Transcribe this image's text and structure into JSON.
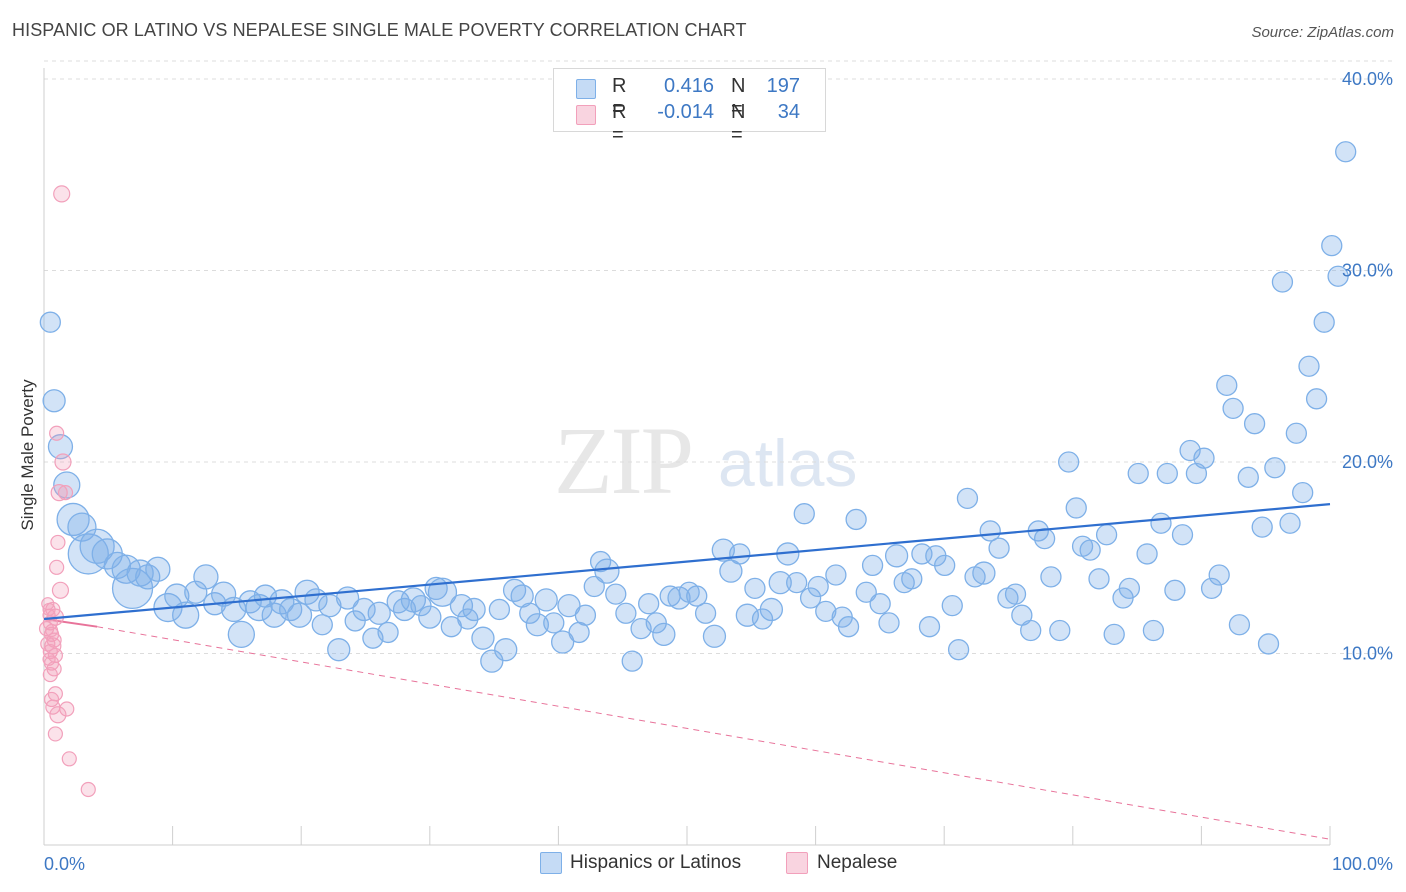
{
  "header": {
    "title": "HISPANIC OR LATINO VS NEPALESE SINGLE MALE POVERTY CORRELATION CHART",
    "source": "Source: ZipAtlas.com"
  },
  "watermark": {
    "zip": "ZIP",
    "atlas": "atlas"
  },
  "legend": {
    "rows": [
      {
        "r_label": "R =",
        "r_value": "0.416",
        "n_label": "N =",
        "n_value": "197",
        "color": "#7eb0e8"
      },
      {
        "r_label": "R =",
        "r_value": "-0.014",
        "n_label": "N =",
        "n_value": "34",
        "color": "#f2a0bb"
      }
    ]
  },
  "bottom_legend": {
    "items": [
      {
        "label": "Hispanics or Latinos",
        "color": "#7eb0e8"
      },
      {
        "label": "Nepalese",
        "color": "#f2a0bb"
      }
    ]
  },
  "colors": {
    "blue_fill": "rgba(126,176,232,0.35)",
    "blue_stroke": "#7eb0e8",
    "blue_line": "#2f6fcf",
    "pink_fill": "rgba(242,160,187,0.30)",
    "pink_stroke": "#f2a0bb",
    "pink_line": "#e8739a",
    "grid": "#dcdcdc",
    "tick_text": "#3d78c4"
  },
  "chart_data": {
    "type": "scatter",
    "title": "HISPANIC OR LATINO VS NEPALESE SINGLE MALE POVERTY CORRELATION CHART",
    "xlabel": "",
    "ylabel": "Single Male Poverty",
    "xlim": [
      0,
      100
    ],
    "ylim": [
      0,
      40
    ],
    "x_tick_labels": [
      "0.0%",
      "100.0%"
    ],
    "y_ticks": [
      10,
      20,
      30,
      40
    ],
    "y_tick_labels": [
      "10.0%",
      "20.0%",
      "30.0%",
      "40.0%"
    ],
    "grid": true,
    "legend_position": "top-center",
    "series": [
      {
        "name": "Hispanics or Latinos",
        "trend": {
          "x": [
            0,
            100
          ],
          "y": [
            11.8,
            17.8
          ]
        },
        "points": [
          [
            0.5,
            27.3,
            10
          ],
          [
            0.8,
            23.2,
            11
          ],
          [
            1.3,
            20.8,
            12
          ],
          [
            1.8,
            18.8,
            13
          ],
          [
            2.3,
            17.0,
            16
          ],
          [
            3.0,
            16.6,
            14
          ],
          [
            3.5,
            15.2,
            20
          ],
          [
            4.2,
            15.6,
            17
          ],
          [
            5.0,
            15.2,
            15
          ],
          [
            5.8,
            14.6,
            13
          ],
          [
            6.5,
            14.4,
            14
          ],
          [
            7.0,
            13.4,
            20
          ],
          [
            7.6,
            14.2,
            13
          ],
          [
            8.2,
            14.0,
            12
          ],
          [
            9.0,
            14.4,
            12
          ],
          [
            9.8,
            12.4,
            14
          ],
          [
            10.5,
            13.0,
            12
          ],
          [
            11.2,
            12.0,
            13
          ],
          [
            12.0,
            13.2,
            11
          ],
          [
            12.8,
            14.0,
            12
          ],
          [
            13.5,
            12.6,
            11
          ],
          [
            14.2,
            13.1,
            12
          ],
          [
            15.0,
            12.3,
            12
          ],
          [
            15.6,
            11.0,
            13
          ],
          [
            16.3,
            12.7,
            11
          ],
          [
            17.0,
            12.4,
            13
          ],
          [
            17.5,
            13.0,
            11
          ],
          [
            18.2,
            12.0,
            12
          ],
          [
            18.8,
            12.7,
            12
          ],
          [
            19.5,
            12.3,
            11
          ],
          [
            20.2,
            12.0,
            12
          ],
          [
            20.8,
            13.2,
            12
          ],
          [
            21.5,
            12.8,
            11
          ],
          [
            22.0,
            11.5,
            10
          ],
          [
            22.6,
            12.5,
            11
          ],
          [
            23.3,
            10.2,
            11
          ],
          [
            24.0,
            12.9,
            11
          ],
          [
            24.6,
            11.7,
            10
          ],
          [
            25.3,
            12.3,
            11
          ],
          [
            26.0,
            10.8,
            10
          ],
          [
            26.5,
            12.1,
            11
          ],
          [
            27.2,
            11.1,
            10
          ],
          [
            28.0,
            12.7,
            11
          ],
          [
            28.5,
            12.3,
            11
          ],
          [
            29.2,
            12.8,
            12
          ],
          [
            29.8,
            12.5,
            10
          ],
          [
            30.5,
            11.9,
            11
          ],
          [
            31.0,
            13.4,
            11
          ],
          [
            31.5,
            13.2,
            14
          ],
          [
            32.2,
            11.4,
            10
          ],
          [
            33.0,
            12.5,
            11
          ],
          [
            33.5,
            11.8,
            10
          ],
          [
            34.0,
            12.3,
            11
          ],
          [
            34.7,
            10.8,
            11
          ],
          [
            35.4,
            9.6,
            11
          ],
          [
            36.0,
            12.3,
            10
          ],
          [
            36.5,
            10.2,
            11
          ],
          [
            37.2,
            13.3,
            11
          ],
          [
            37.8,
            13.0,
            11
          ],
          [
            38.4,
            12.1,
            10
          ],
          [
            39.0,
            11.5,
            11
          ],
          [
            39.7,
            12.8,
            11
          ],
          [
            40.3,
            11.6,
            10
          ],
          [
            41.0,
            10.6,
            11
          ],
          [
            41.5,
            12.5,
            11
          ],
          [
            42.3,
            11.1,
            10
          ],
          [
            42.8,
            12.0,
            10
          ],
          [
            43.5,
            13.5,
            10
          ],
          [
            44.0,
            14.8,
            10
          ],
          [
            44.5,
            14.3,
            12
          ],
          [
            45.2,
            13.1,
            10
          ],
          [
            46.0,
            12.1,
            10
          ],
          [
            46.5,
            9.6,
            10
          ],
          [
            47.2,
            11.3,
            10
          ],
          [
            47.8,
            12.6,
            10
          ],
          [
            48.4,
            11.6,
            10
          ],
          [
            49.0,
            11.0,
            11
          ],
          [
            49.5,
            13.0,
            10
          ],
          [
            50.2,
            12.9,
            11
          ],
          [
            51.0,
            13.2,
            10
          ],
          [
            51.6,
            13.0,
            10
          ],
          [
            52.3,
            12.1,
            10
          ],
          [
            53.0,
            10.9,
            11
          ],
          [
            53.7,
            15.4,
            11
          ],
          [
            54.3,
            14.3,
            11
          ],
          [
            55.0,
            15.2,
            10
          ],
          [
            55.6,
            12.0,
            11
          ],
          [
            56.2,
            13.4,
            10
          ],
          [
            56.8,
            11.8,
            10
          ],
          [
            57.5,
            12.3,
            11
          ],
          [
            58.2,
            13.7,
            11
          ],
          [
            58.8,
            15.2,
            11
          ],
          [
            59.5,
            13.7,
            10
          ],
          [
            60.1,
            17.3,
            10
          ],
          [
            60.6,
            12.9,
            10
          ],
          [
            61.2,
            13.5,
            10
          ],
          [
            61.8,
            12.2,
            10
          ],
          [
            62.6,
            14.1,
            10
          ],
          [
            63.1,
            11.9,
            10
          ],
          [
            63.6,
            11.4,
            10
          ],
          [
            64.2,
            17.0,
            10
          ],
          [
            65.0,
            13.2,
            10
          ],
          [
            65.5,
            14.6,
            10
          ],
          [
            66.1,
            12.6,
            10
          ],
          [
            66.8,
            11.6,
            10
          ],
          [
            67.4,
            15.1,
            11
          ],
          [
            68.0,
            13.7,
            10
          ],
          [
            68.6,
            13.9,
            10
          ],
          [
            69.4,
            15.2,
            10
          ],
          [
            70.0,
            11.4,
            10
          ],
          [
            70.5,
            15.1,
            10
          ],
          [
            71.2,
            14.6,
            10
          ],
          [
            71.8,
            12.5,
            10
          ],
          [
            72.3,
            10.2,
            10
          ],
          [
            73.0,
            18.1,
            10
          ],
          [
            73.6,
            14.0,
            10
          ],
          [
            74.3,
            14.2,
            11
          ],
          [
            74.8,
            16.4,
            10
          ],
          [
            75.5,
            15.5,
            10
          ],
          [
            76.2,
            12.9,
            10
          ],
          [
            76.8,
            13.1,
            10
          ],
          [
            77.3,
            12.0,
            10
          ],
          [
            78.0,
            11.2,
            10
          ],
          [
            78.6,
            16.4,
            10
          ],
          [
            79.1,
            16.0,
            10
          ],
          [
            79.6,
            14.0,
            10
          ],
          [
            80.3,
            11.2,
            10
          ],
          [
            81.0,
            20.0,
            10
          ],
          [
            81.6,
            17.6,
            10
          ],
          [
            82.1,
            15.6,
            10
          ],
          [
            82.7,
            15.4,
            10
          ],
          [
            83.4,
            13.9,
            10
          ],
          [
            84.0,
            16.2,
            10
          ],
          [
            84.6,
            11.0,
            10
          ],
          [
            85.3,
            12.9,
            10
          ],
          [
            85.8,
            13.4,
            10
          ],
          [
            86.5,
            19.4,
            10
          ],
          [
            87.2,
            15.2,
            10
          ],
          [
            87.7,
            11.2,
            10
          ],
          [
            88.3,
            16.8,
            10
          ],
          [
            88.8,
            19.4,
            10
          ],
          [
            89.4,
            13.3,
            10
          ],
          [
            90.0,
            16.2,
            10
          ],
          [
            90.6,
            20.6,
            10
          ],
          [
            91.1,
            19.4,
            10
          ],
          [
            91.7,
            20.2,
            10
          ],
          [
            92.3,
            13.4,
            10
          ],
          [
            92.9,
            14.1,
            10
          ],
          [
            93.5,
            24.0,
            10
          ],
          [
            94.0,
            22.8,
            10
          ],
          [
            94.5,
            11.5,
            10
          ],
          [
            95.2,
            19.2,
            10
          ],
          [
            95.7,
            22.0,
            10
          ],
          [
            96.3,
            16.6,
            10
          ],
          [
            96.8,
            10.5,
            10
          ],
          [
            97.3,
            19.7,
            10
          ],
          [
            97.9,
            29.4,
            10
          ],
          [
            98.5,
            16.8,
            10
          ],
          [
            99.0,
            21.5,
            10
          ],
          [
            99.5,
            18.4,
            10
          ],
          [
            100.0,
            25.0,
            10
          ],
          [
            100.6,
            23.3,
            10
          ],
          [
            101.2,
            27.3,
            10
          ],
          [
            101.8,
            31.3,
            10
          ],
          [
            102.3,
            29.7,
            10
          ],
          [
            102.9,
            36.2,
            10
          ]
        ]
      },
      {
        "name": "Nepalese",
        "trend": {
          "x": [
            0,
            4.2
          ],
          "y": [
            11.8,
            11.4
          ]
        },
        "trend_extended": {
          "x": [
            4.2,
            100
          ],
          "y": [
            11.4,
            0.3
          ]
        },
        "points": [
          [
            1.4,
            34.0,
            8
          ],
          [
            1.0,
            21.5,
            7
          ],
          [
            1.5,
            20.0,
            8
          ],
          [
            1.2,
            18.4,
            8
          ],
          [
            1.7,
            18.4,
            7
          ],
          [
            1.1,
            15.8,
            7
          ],
          [
            1.0,
            14.5,
            7
          ],
          [
            1.3,
            13.3,
            8
          ],
          [
            0.3,
            12.6,
            6
          ],
          [
            0.7,
            12.3,
            7
          ],
          [
            0.4,
            12.0,
            6
          ],
          [
            0.9,
            11.9,
            8
          ],
          [
            0.5,
            11.6,
            7
          ],
          [
            0.2,
            11.3,
            7
          ],
          [
            0.6,
            11.0,
            7
          ],
          [
            0.8,
            10.7,
            7
          ],
          [
            0.3,
            10.5,
            7
          ],
          [
            0.7,
            10.4,
            8
          ],
          [
            0.5,
            10.1,
            7
          ],
          [
            0.9,
            9.9,
            7
          ],
          [
            0.4,
            9.7,
            6
          ],
          [
            0.6,
            9.5,
            7
          ],
          [
            0.8,
            9.2,
            7
          ],
          [
            0.5,
            8.9,
            7
          ],
          [
            0.9,
            7.9,
            7
          ],
          [
            0.6,
            7.6,
            7
          ],
          [
            0.7,
            7.2,
            7
          ],
          [
            1.8,
            7.1,
            7
          ],
          [
            1.1,
            6.8,
            8
          ],
          [
            0.9,
            5.8,
            7
          ],
          [
            2.0,
            4.5,
            7
          ],
          [
            3.5,
            2.9,
            7
          ],
          [
            0.4,
            12.3,
            6
          ],
          [
            0.6,
            11.2,
            6
          ]
        ]
      }
    ]
  }
}
